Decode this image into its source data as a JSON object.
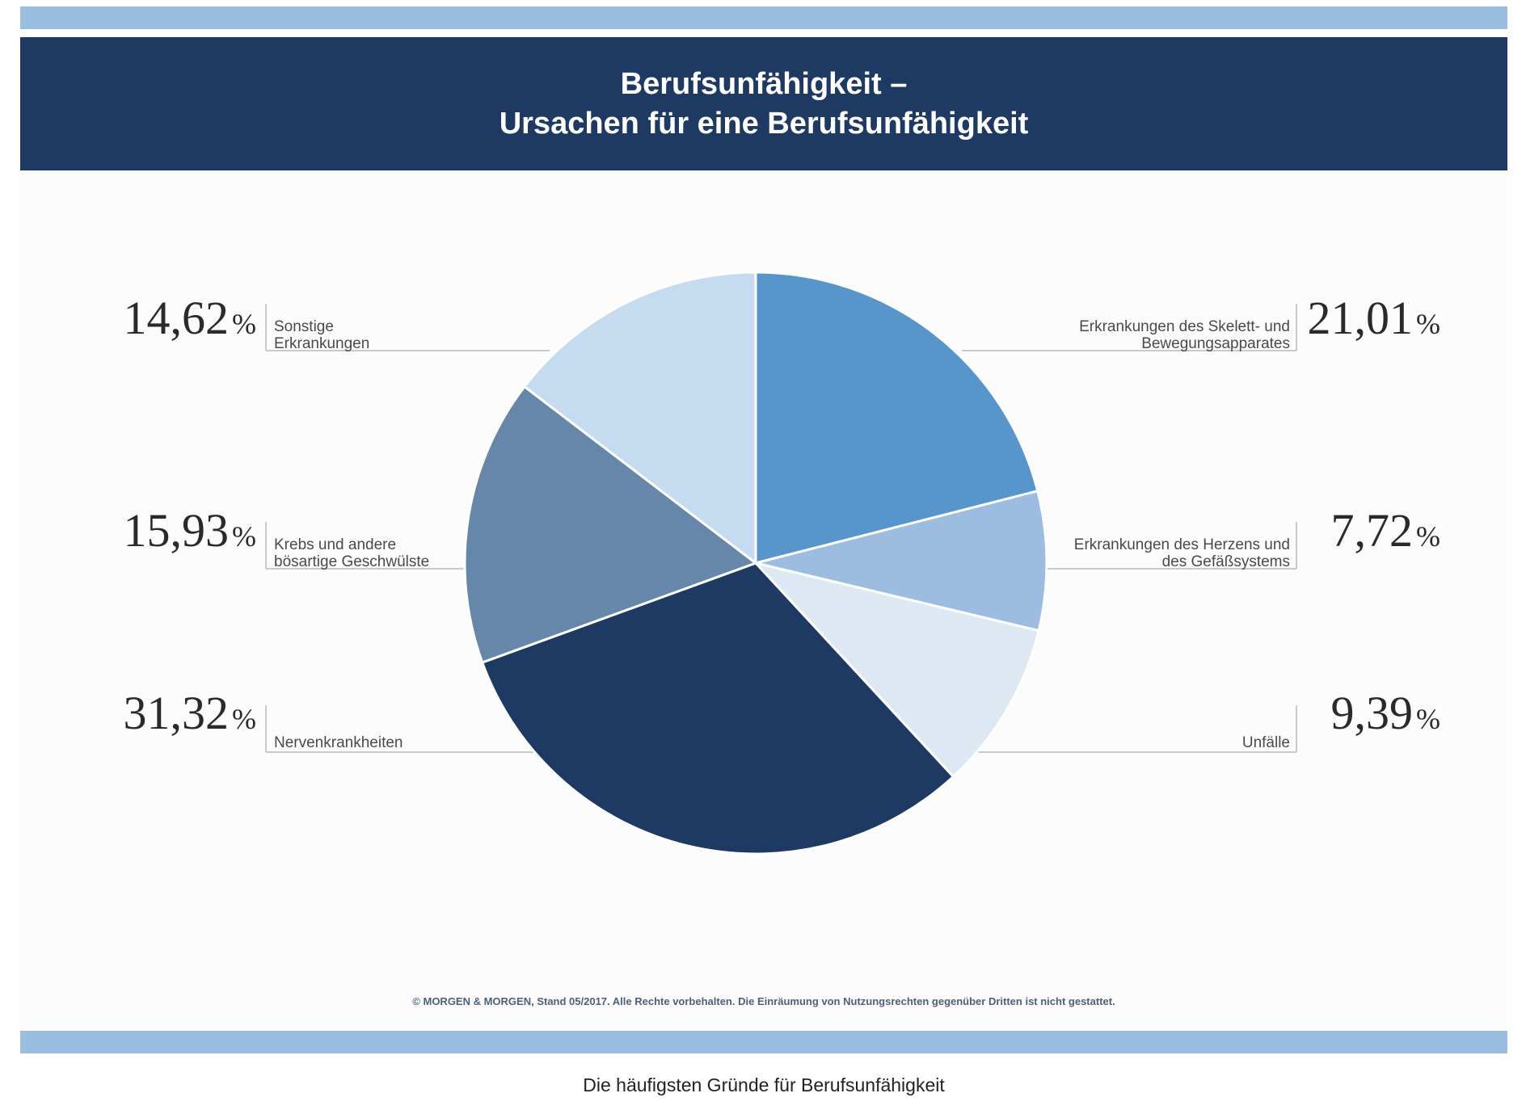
{
  "header": {
    "title_line1": "Berufsunfähigkeit –",
    "title_line2": "Ursachen für eine Berufsunfähigkeit"
  },
  "footer_note": "© MORGEN & MORGEN, Stand 05/2017. Alle Rechte vorbehalten. Die Einräumung von Nutzungsrechten gegenüber Dritten ist nicht gestattet.",
  "caption": "Die häufigsten Gründe für Berufsunfähigkeit",
  "chart_data": {
    "type": "pie",
    "start": "12 o'clock",
    "direction": "clockwise",
    "unit": "%",
    "slices": [
      {
        "label": "Erkrankungen des Skelett- und Bewegungsapparates",
        "label_lines": [
          "Erkrankungen des Skelett- und",
          "Bewegungsapparates"
        ],
        "value": 21.01,
        "display": "21,01",
        "color": "#5795cb"
      },
      {
        "label": "Erkrankungen des Herzens und des Gefäßsystems",
        "label_lines": [
          "Erkrankungen des Herzens und",
          "des Gefäßsystems"
        ],
        "value": 7.72,
        "display": "7,72",
        "color": "#9cbde0"
      },
      {
        "label": "Unfälle",
        "label_lines": [
          "Unfälle"
        ],
        "value": 9.39,
        "display": "9,39",
        "color": "#dde8f3"
      },
      {
        "label": "Nervenkrankheiten",
        "label_lines": [
          "Nervenkrankheiten"
        ],
        "value": 31.32,
        "display": "31,32",
        "color": "#1e3a62"
      },
      {
        "label": "Krebs und andere bösartige Geschwülste",
        "label_lines": [
          "Krebs und andere",
          "bösartige Geschwülste"
        ],
        "value": 15.93,
        "display": "15,93",
        "color": "#6787aa"
      },
      {
        "label": "Sonstige Erkrankungen",
        "label_lines": [
          "Sonstige",
          "Erkrankungen"
        ],
        "value": 14.62,
        "display": "14,62",
        "color": "#c5dcf0"
      }
    ]
  }
}
